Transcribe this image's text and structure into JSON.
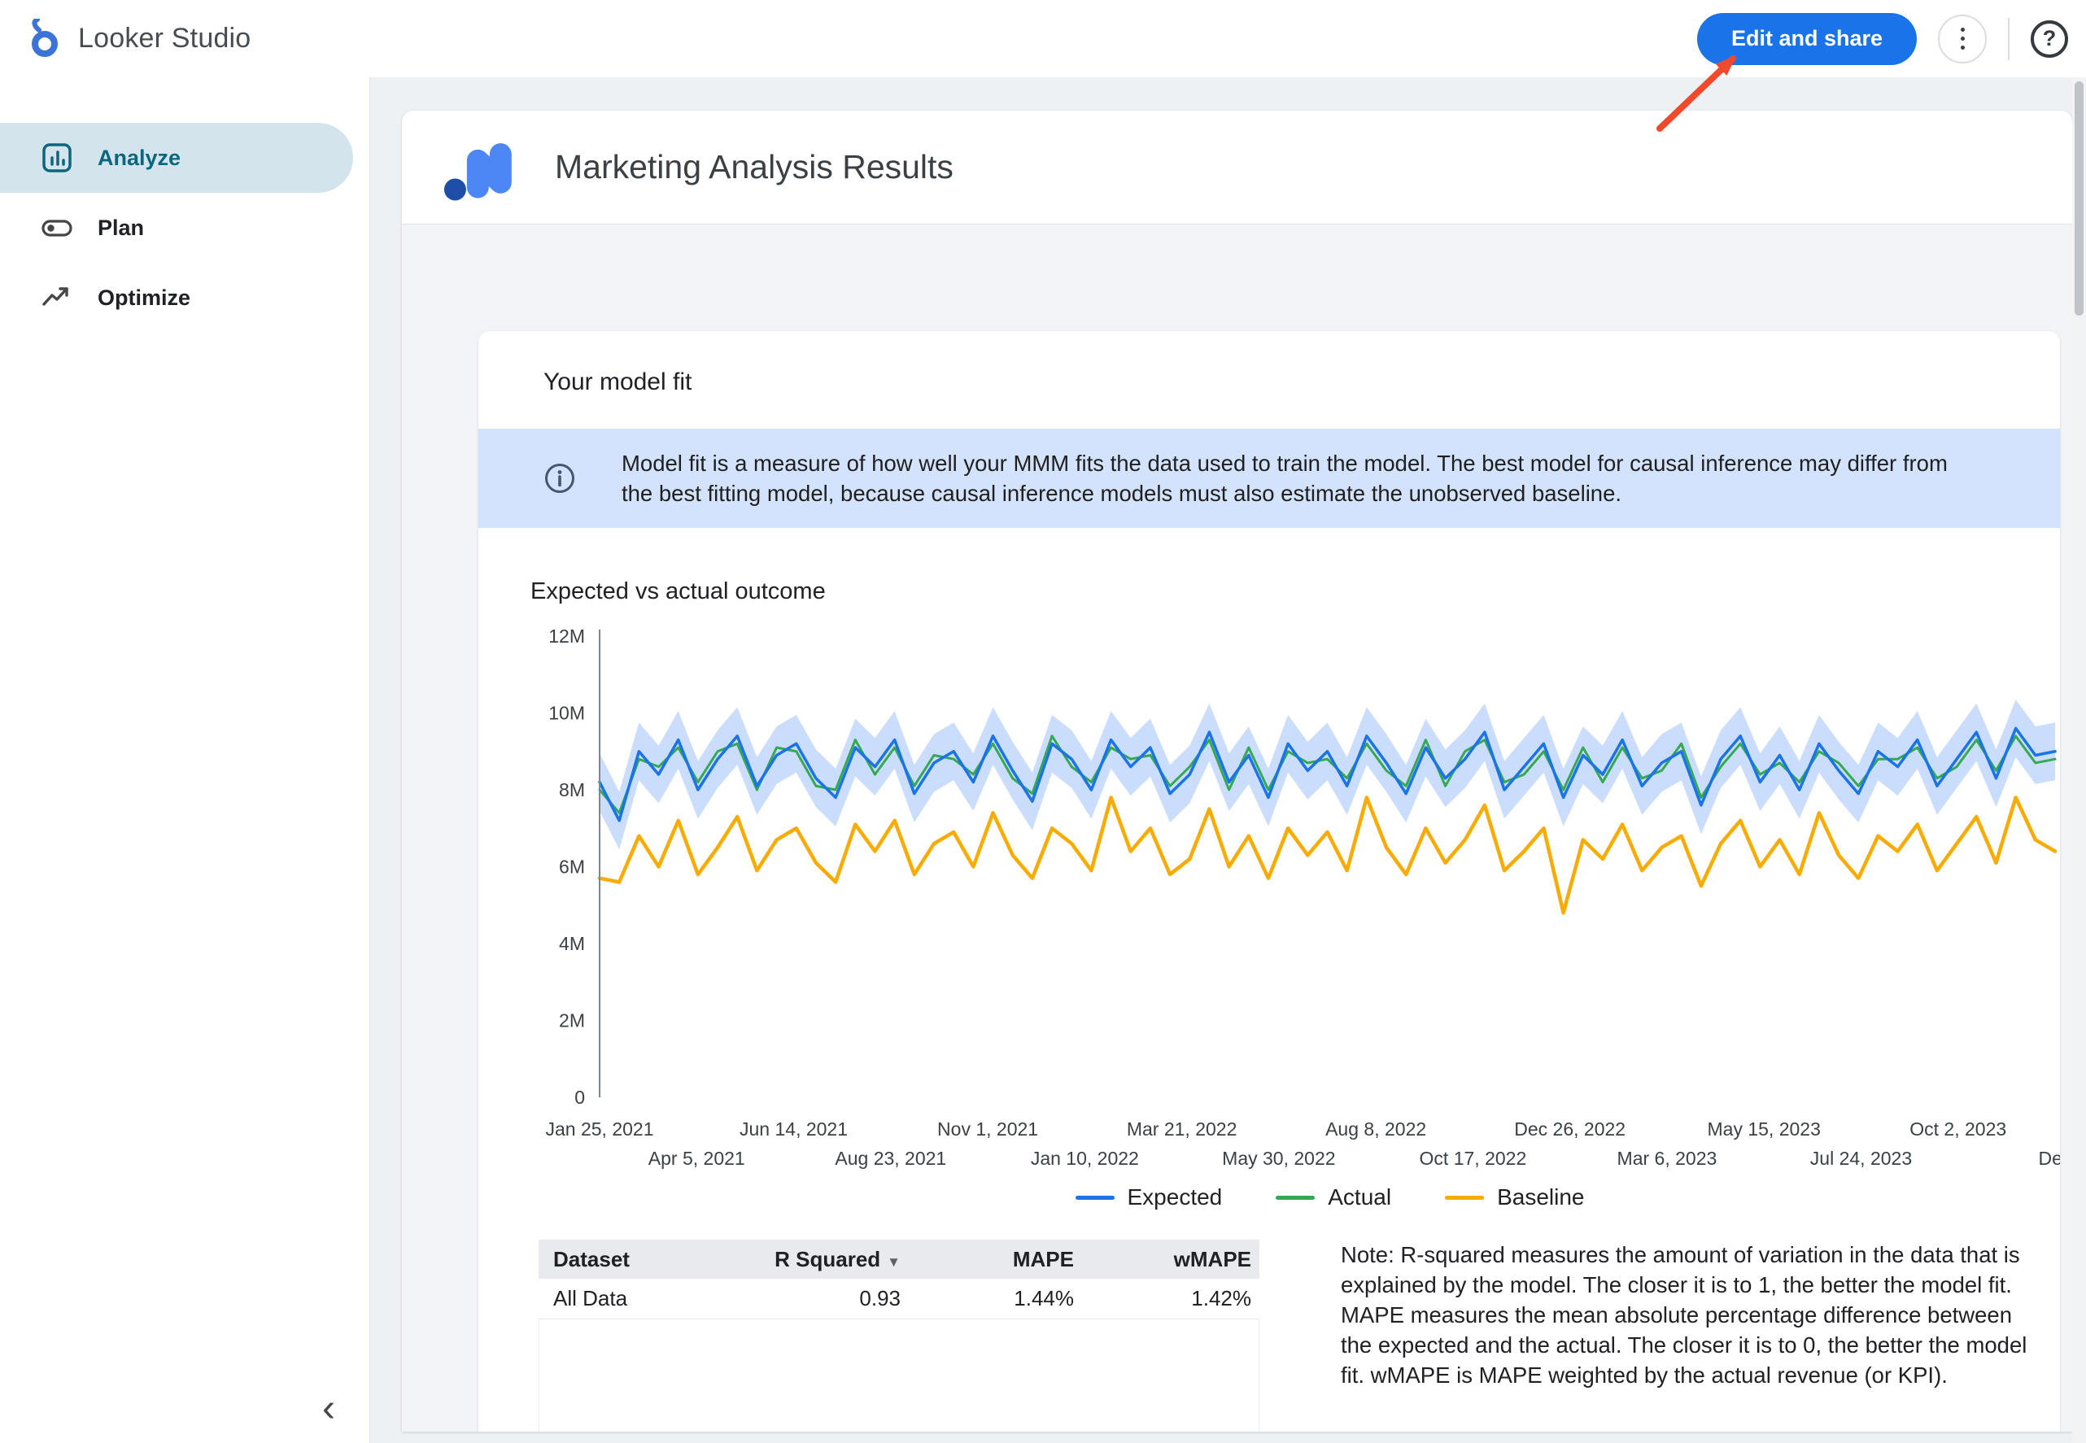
{
  "topbar": {
    "app_name": "Looker Studio",
    "edit_share_label": "Edit and share"
  },
  "icons": {
    "help": "?",
    "collapse": "‹"
  },
  "colors": {
    "accent": "#1a73e8",
    "banner_bg": "#d3e3fd",
    "selected_nav_bg": "#d3e4ec",
    "selected_nav_fg": "#0b667e",
    "annotation_arrow": "#f1492c"
  },
  "sidebar": {
    "items": [
      {
        "label": "Analyze",
        "selected": true
      },
      {
        "label": "Plan",
        "selected": false
      },
      {
        "label": "Optimize",
        "selected": false
      }
    ]
  },
  "report": {
    "title": "Marketing Analysis Results",
    "card": {
      "title": "Your model fit",
      "info_banner": "Model fit is a measure of how well your MMM fits the data used to train the model. The best model for causal inference may differ from the best fitting model, because causal inference models must also estimate the unobserved baseline.",
      "section_title": "Expected vs actual outcome",
      "note": "Note: R-squared measures the amount of variation in the data that is explained by the model. The closer it is to 1, the better the model fit. MAPE measures the mean absolute percentage difference between the expected and the actual. The closer it is to 0, the better the model fit. wMAPE is MAPE weighted by the actual revenue (or KPI)."
    },
    "table": {
      "columns": [
        "Dataset",
        "R Squared",
        "MAPE",
        "wMAPE"
      ],
      "sort_indicator": "▼",
      "sorted_column": "R Squared",
      "rows": [
        [
          "All Data",
          "0.93",
          "1.44%",
          "1.42%"
        ]
      ]
    }
  },
  "chart_data": {
    "type": "line",
    "title": "Expected vs actual outcome",
    "ylabel": "",
    "xlabel": "",
    "ylim_millions": [
      0,
      12
    ],
    "grid": false,
    "legend_position": "bottom",
    "y_ticks": [
      {
        "label": "0",
        "value_millions": 0
      },
      {
        "label": "2M",
        "value_millions": 2
      },
      {
        "label": "4M",
        "value_millions": 4
      },
      {
        "label": "6M",
        "value_millions": 6
      },
      {
        "label": "8M",
        "value_millions": 8
      },
      {
        "label": "10M",
        "value_millions": 10
      },
      {
        "label": "12M",
        "value_millions": 12
      }
    ],
    "x_ticks": [
      "Jan 25, 2021",
      "Apr 5, 2021",
      "Jun 14, 2021",
      "Aug 23, 2021",
      "Nov 1, 2021",
      "Jan 10, 2022",
      "Mar 21, 2022",
      "May 30, 2022",
      "Aug 8, 2022",
      "Oct 17, 2022",
      "Dec 26, 2022",
      "Mar 6, 2023",
      "May 15, 2023",
      "Jul 24, 2023",
      "Oct 2, 2023",
      "Dec"
    ],
    "band": {
      "around": "Expected",
      "half_width_millions": 0.75,
      "color": "#a8c7fa"
    },
    "series": [
      {
        "name": "Expected",
        "color": "#1a73e8",
        "values_millions": [
          8.2,
          7.2,
          9.0,
          8.4,
          9.3,
          8.0,
          8.8,
          9.4,
          8.1,
          8.9,
          9.2,
          8.3,
          7.8,
          9.1,
          8.6,
          9.3,
          7.9,
          8.7,
          9.0,
          8.2,
          9.4,
          8.5,
          7.7,
          9.2,
          8.8,
          8.0,
          9.3,
          8.6,
          9.1,
          7.9,
          8.4,
          9.5,
          8.2,
          8.9,
          7.8,
          9.2,
          8.5,
          9.0,
          8.1,
          9.4,
          8.7,
          7.9,
          9.1,
          8.3,
          8.8,
          9.5,
          8.0,
          8.6,
          9.2,
          7.8,
          8.9,
          8.4,
          9.3,
          8.1,
          8.7,
          9.0,
          7.6,
          8.8,
          9.4,
          8.2,
          8.9,
          8.0,
          9.2,
          8.5,
          7.9,
          9.0,
          8.6,
          9.3,
          8.1,
          8.8,
          9.5,
          8.3,
          9.6,
          8.9,
          9.0
        ]
      },
      {
        "name": "Actual",
        "color": "#34a853",
        "values_millions": [
          8.0,
          7.4,
          8.8,
          8.6,
          9.1,
          8.2,
          9.0,
          9.2,
          8.0,
          9.1,
          9.0,
          8.1,
          8.0,
          9.3,
          8.4,
          9.1,
          8.1,
          8.9,
          8.8,
          8.4,
          9.2,
          8.3,
          7.9,
          9.4,
          8.6,
          8.2,
          9.1,
          8.8,
          8.9,
          8.1,
          8.6,
          9.3,
          8.0,
          9.1,
          8.0,
          9.0,
          8.7,
          8.8,
          8.3,
          9.2,
          8.5,
          8.1,
          9.3,
          8.1,
          9.0,
          9.3,
          8.2,
          8.4,
          9.0,
          8.0,
          9.1,
          8.2,
          9.1,
          8.3,
          8.5,
          9.2,
          7.8,
          8.6,
          9.2,
          8.4,
          8.7,
          8.2,
          9.0,
          8.7,
          8.1,
          8.8,
          8.8,
          9.1,
          8.3,
          8.6,
          9.3,
          8.5,
          9.4,
          8.7,
          8.8
        ]
      },
      {
        "name": "Baseline",
        "color": "#f9ab00",
        "values_millions": [
          5.7,
          5.6,
          6.8,
          6.0,
          7.2,
          5.8,
          6.5,
          7.3,
          5.9,
          6.7,
          7.0,
          6.1,
          5.6,
          7.1,
          6.4,
          7.2,
          5.8,
          6.6,
          6.9,
          6.0,
          7.4,
          6.3,
          5.7,
          7.0,
          6.6,
          5.9,
          7.8,
          6.4,
          7.0,
          5.8,
          6.2,
          7.5,
          6.0,
          6.8,
          5.7,
          7.0,
          6.3,
          6.9,
          5.9,
          7.8,
          6.5,
          5.8,
          7.0,
          6.1,
          6.7,
          7.6,
          5.9,
          6.4,
          7.0,
          4.8,
          6.7,
          6.2,
          7.1,
          5.9,
          6.5,
          6.8,
          5.5,
          6.6,
          7.2,
          6.0,
          6.7,
          5.8,
          7.4,
          6.3,
          5.7,
          6.8,
          6.4,
          7.1,
          5.9,
          6.6,
          7.3,
          6.1,
          7.8,
          6.7,
          6.4
        ]
      }
    ]
  }
}
